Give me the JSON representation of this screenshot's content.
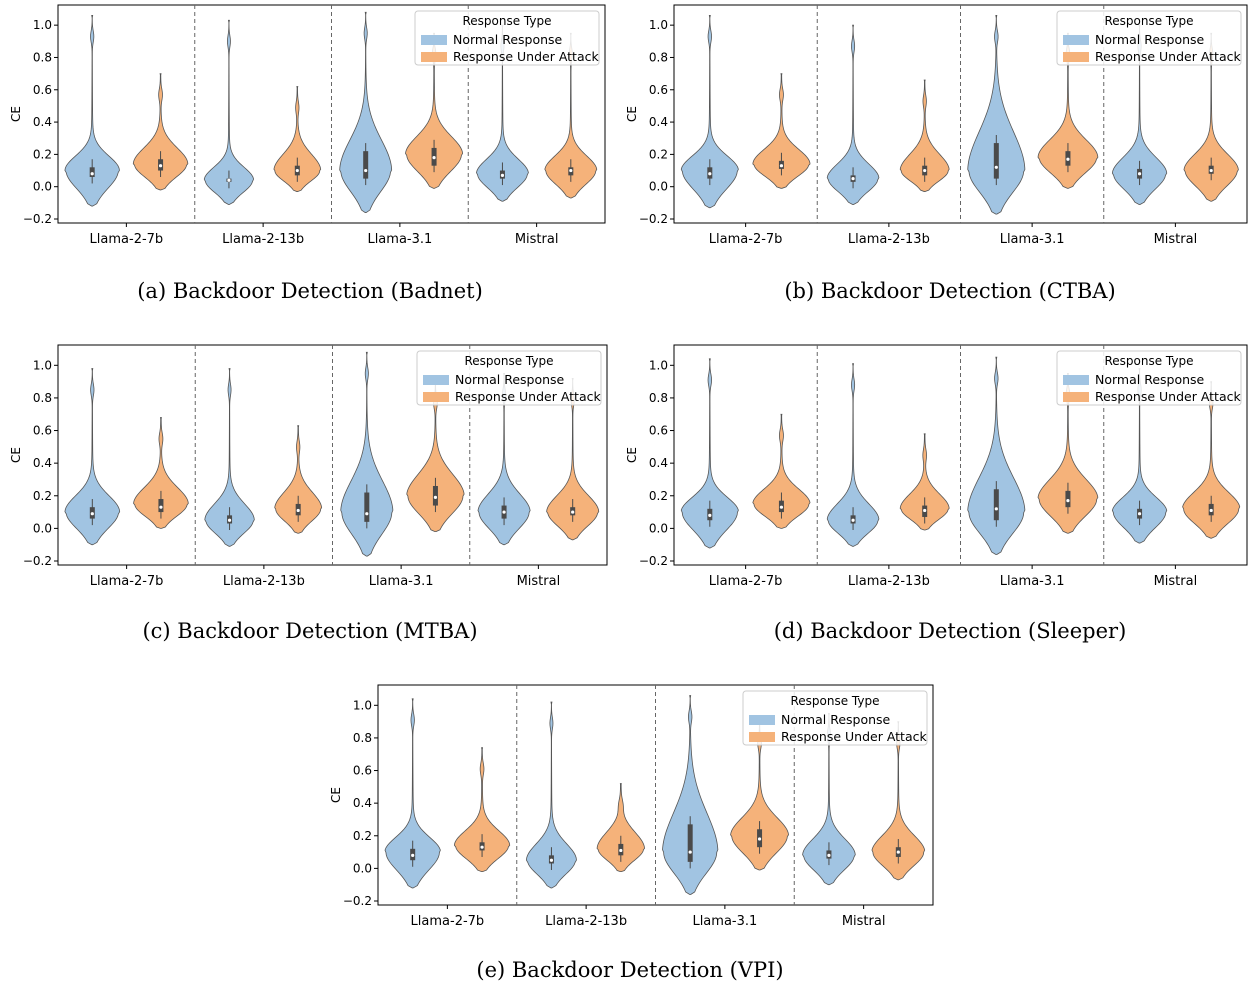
{
  "figure": {
    "captions": [
      "(a)  Backdoor Detection (Badnet)",
      "(b)  Backdoor Detection (CTBA)",
      "(c)  Backdoor Detection (MTBA)",
      "(d)  Backdoor Detection (Sleeper)",
      "(e)  Backdoor Detection (VPI)"
    ]
  },
  "colors": {
    "normal": "#a1c4e2",
    "attack": "#f5b27a",
    "edge": "#555555",
    "box": "#4a4a4a"
  },
  "chart_data": [
    {
      "type": "violin",
      "caption": "(a)  Backdoor Detection (Badnet)",
      "ylabel": "CE",
      "ylim": [
        -0.2,
        1.1
      ],
      "yticks": [
        -0.2,
        0.0,
        0.2,
        0.4,
        0.6,
        0.8,
        1.0
      ],
      "categories": [
        "Llama-2-7b",
        "Llama-2-13b",
        "Llama-3.1",
        "Mistral"
      ],
      "legend": {
        "title": "Response Type",
        "entries": [
          "Normal Response",
          "Response Under Attack"
        ],
        "position": "top-right"
      },
      "series": [
        {
          "name": "Normal Response",
          "min": [
            -0.12,
            -0.11,
            -0.16,
            -0.09
          ],
          "max": [
            1.06,
            1.03,
            1.08,
            1.0
          ],
          "q1": [
            0.06,
            0.03,
            0.05,
            0.05
          ],
          "median": [
            0.08,
            0.04,
            0.1,
            0.07
          ],
          "q3": [
            0.12,
            0.05,
            0.22,
            0.1
          ],
          "mode": [
            0.1,
            0.04,
            0.1,
            0.08
          ],
          "width": [
            0.42,
            0.38,
            0.4,
            0.4
          ]
        },
        {
          "name": "Response Under Attack",
          "min": [
            -0.02,
            -0.03,
            -0.01,
            -0.07
          ],
          "max": [
            0.7,
            0.62,
            0.95,
            0.95
          ],
          "q1": [
            0.1,
            0.07,
            0.13,
            0.07
          ],
          "median": [
            0.13,
            0.1,
            0.18,
            0.1
          ],
          "q3": [
            0.17,
            0.13,
            0.24,
            0.12
          ],
          "mode": [
            0.14,
            0.1,
            0.2,
            0.1
          ],
          "width": [
            0.42,
            0.36,
            0.44,
            0.4
          ]
        }
      ]
    },
    {
      "type": "violin",
      "caption": "(b)  Backdoor Detection (CTBA)",
      "ylabel": "CE",
      "ylim": [
        -0.2,
        1.1
      ],
      "yticks": [
        -0.2,
        0.0,
        0.2,
        0.4,
        0.6,
        0.8,
        1.0
      ],
      "categories": [
        "Llama-2-7b",
        "Llama-2-13b",
        "Llama-3.1",
        "Mistral"
      ],
      "legend": {
        "title": "Response Type",
        "entries": [
          "Normal Response",
          "Response Under Attack"
        ],
        "position": "top-right"
      },
      "series": [
        {
          "name": "Normal Response",
          "min": [
            -0.13,
            -0.11,
            -0.17,
            -0.11
          ],
          "max": [
            1.06,
            1.0,
            1.06,
            1.0
          ],
          "q1": [
            0.05,
            0.03,
            0.05,
            0.05
          ],
          "median": [
            0.08,
            0.05,
            0.12,
            0.08
          ],
          "q3": [
            0.12,
            0.07,
            0.27,
            0.11
          ],
          "mode": [
            0.1,
            0.05,
            0.1,
            0.08
          ],
          "width": [
            0.42,
            0.38,
            0.42,
            0.4
          ]
        },
        {
          "name": "Response Under Attack",
          "min": [
            -0.01,
            -0.03,
            -0.01,
            -0.09
          ],
          "max": [
            0.7,
            0.66,
            0.95,
            0.95
          ],
          "q1": [
            0.11,
            0.07,
            0.13,
            0.08
          ],
          "median": [
            0.13,
            0.1,
            0.17,
            0.1
          ],
          "q3": [
            0.16,
            0.13,
            0.22,
            0.13
          ],
          "mode": [
            0.14,
            0.1,
            0.18,
            0.1
          ],
          "width": [
            0.42,
            0.36,
            0.44,
            0.4
          ]
        }
      ]
    },
    {
      "type": "violin",
      "caption": "(c)  Backdoor Detection (MTBA)",
      "ylabel": "CE",
      "ylim": [
        -0.2,
        1.1
      ],
      "yticks": [
        -0.2,
        0.0,
        0.2,
        0.4,
        0.6,
        0.8,
        1.0
      ],
      "categories": [
        "Llama-2-7b",
        "Llama-2-13b",
        "Llama-3.1",
        "Mistral"
      ],
      "legend": {
        "title": "Response Type",
        "entries": [
          "Normal Response",
          "Response Under Attack"
        ],
        "position": "top-right"
      },
      "series": [
        {
          "name": "Normal Response",
          "min": [
            -0.1,
            -0.11,
            -0.17,
            -0.1
          ],
          "max": [
            0.98,
            0.98,
            1.08,
            0.95
          ],
          "q1": [
            0.06,
            0.03,
            0.04,
            0.06
          ],
          "median": [
            0.09,
            0.05,
            0.09,
            0.1
          ],
          "q3": [
            0.13,
            0.08,
            0.22,
            0.14
          ],
          "mode": [
            0.1,
            0.05,
            0.1,
            0.1
          ],
          "width": [
            0.42,
            0.38,
            0.4,
            0.4
          ]
        },
        {
          "name": "Response Under Attack",
          "min": [
            0.0,
            -0.03,
            -0.02,
            -0.07
          ],
          "max": [
            0.68,
            0.63,
            0.9,
            0.92
          ],
          "q1": [
            0.1,
            0.08,
            0.14,
            0.08
          ],
          "median": [
            0.13,
            0.11,
            0.19,
            0.1
          ],
          "q3": [
            0.18,
            0.15,
            0.26,
            0.13
          ],
          "mode": [
            0.15,
            0.12,
            0.2,
            0.1
          ],
          "width": [
            0.42,
            0.36,
            0.44,
            0.4
          ]
        }
      ]
    },
    {
      "type": "violin",
      "caption": "(d)  Backdoor Detection (Sleeper)",
      "ylabel": "CE",
      "ylim": [
        -0.2,
        1.1
      ],
      "yticks": [
        -0.2,
        0.0,
        0.2,
        0.4,
        0.6,
        0.8,
        1.0
      ],
      "categories": [
        "Llama-2-7b",
        "Llama-2-13b",
        "Llama-3.1",
        "Mistral"
      ],
      "legend": {
        "title": "Response Type",
        "entries": [
          "Normal Response",
          "Response Under Attack"
        ],
        "position": "top-right"
      },
      "series": [
        {
          "name": "Normal Response",
          "min": [
            -0.12,
            -0.11,
            -0.16,
            -0.09
          ],
          "max": [
            1.04,
            1.01,
            1.05,
            0.98
          ],
          "q1": [
            0.05,
            0.03,
            0.05,
            0.06
          ],
          "median": [
            0.08,
            0.05,
            0.12,
            0.09
          ],
          "q3": [
            0.12,
            0.08,
            0.24,
            0.12
          ],
          "mode": [
            0.1,
            0.05,
            0.1,
            0.1
          ],
          "width": [
            0.42,
            0.38,
            0.42,
            0.4
          ]
        },
        {
          "name": "Response Under Attack",
          "min": [
            0.0,
            -0.01,
            -0.03,
            -0.06
          ],
          "max": [
            0.7,
            0.58,
            0.95,
            0.9
          ],
          "q1": [
            0.1,
            0.07,
            0.13,
            0.08
          ],
          "median": [
            0.13,
            0.11,
            0.17,
            0.11
          ],
          "q3": [
            0.17,
            0.14,
            0.23,
            0.15
          ],
          "mode": [
            0.15,
            0.12,
            0.18,
            0.12
          ],
          "width": [
            0.42,
            0.36,
            0.44,
            0.42
          ]
        }
      ]
    },
    {
      "type": "violin",
      "caption": "(e)  Backdoor Detection (VPI)",
      "ylabel": "CE",
      "ylim": [
        -0.2,
        1.1
      ],
      "yticks": [
        -0.2,
        0.0,
        0.2,
        0.4,
        0.6,
        0.8,
        1.0
      ],
      "categories": [
        "Llama-2-7b",
        "Llama-2-13b",
        "Llama-3.1",
        "Mistral"
      ],
      "legend": {
        "title": "Response Type",
        "entries": [
          "Normal Response",
          "Response Under Attack"
        ],
        "position": "top-right"
      },
      "series": [
        {
          "name": "Normal Response",
          "min": [
            -0.12,
            -0.12,
            -0.16,
            -0.1
          ],
          "max": [
            1.04,
            1.02,
            1.06,
            0.95
          ],
          "q1": [
            0.05,
            0.03,
            0.04,
            0.06
          ],
          "median": [
            0.08,
            0.05,
            0.1,
            0.08
          ],
          "q3": [
            0.12,
            0.08,
            0.27,
            0.11
          ],
          "mode": [
            0.1,
            0.05,
            0.1,
            0.08
          ],
          "width": [
            0.42,
            0.38,
            0.42,
            0.4
          ]
        },
        {
          "name": "Response Under Attack",
          "min": [
            -0.02,
            -0.02,
            -0.01,
            -0.07
          ],
          "max": [
            0.74,
            0.52,
            0.9,
            0.9
          ],
          "q1": [
            0.11,
            0.08,
            0.13,
            0.07
          ],
          "median": [
            0.13,
            0.11,
            0.18,
            0.1
          ],
          "q3": [
            0.16,
            0.15,
            0.24,
            0.13
          ],
          "mode": [
            0.14,
            0.12,
            0.2,
            0.1
          ],
          "width": [
            0.42,
            0.36,
            0.44,
            0.4
          ]
        }
      ]
    }
  ]
}
